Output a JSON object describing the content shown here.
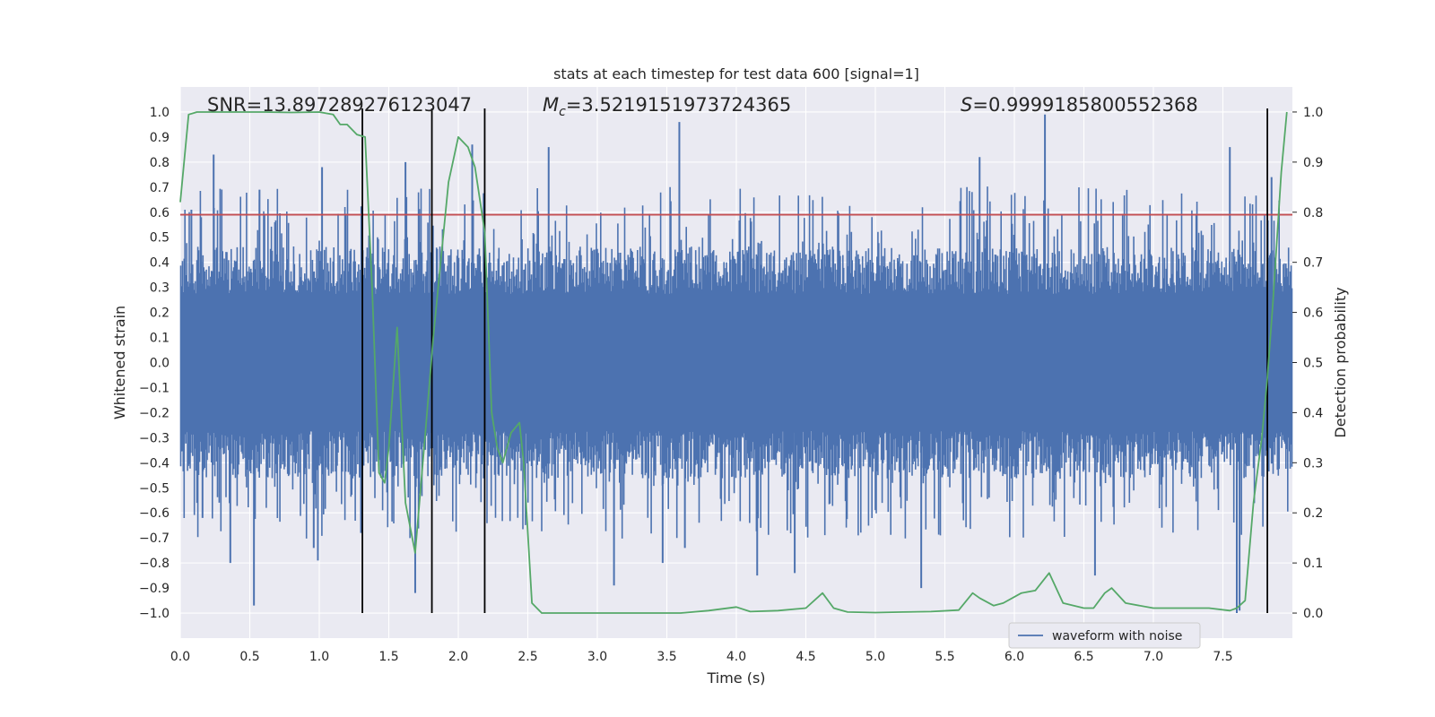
{
  "chart_data": {
    "type": "line",
    "title": "stats at each timestep for test data 600 [signal=1]",
    "xlabel": "Time (s)",
    "ylabel": "Whitened strain",
    "y2label": "Detection probability",
    "xlim": [
      0.0,
      8.0
    ],
    "ylim": [
      -1.1,
      1.1
    ],
    "y2lim": [
      -0.05,
      1.05
    ],
    "xticks": [
      0.0,
      0.5,
      1.0,
      1.5,
      2.0,
      2.5,
      3.0,
      3.5,
      4.0,
      4.5,
      5.0,
      5.5,
      6.0,
      6.5,
      7.0,
      7.5
    ],
    "xtick_labels": [
      "0.0",
      "0.5",
      "1.0",
      "1.5",
      "2.0",
      "2.5",
      "3.0",
      "3.5",
      "4.0",
      "4.5",
      "5.0",
      "5.5",
      "6.0",
      "6.5",
      "7.0",
      "7.5"
    ],
    "yticks": [
      -1.0,
      -0.9,
      -0.8,
      -0.7,
      -0.6,
      -0.5,
      -0.4,
      -0.3,
      -0.2,
      -0.1,
      0.0,
      0.1,
      0.2,
      0.3,
      0.4,
      0.5,
      0.6,
      0.7,
      0.8,
      0.9,
      1.0
    ],
    "ytick_labels": [
      "−1.0",
      "−0.9",
      "−0.8",
      "−0.7",
      "−0.6",
      "−0.5",
      "−0.4",
      "−0.3",
      "−0.2",
      "−0.1",
      "0.0",
      "0.1",
      "0.2",
      "0.3",
      "0.4",
      "0.5",
      "0.6",
      "0.7",
      "0.8",
      "0.9",
      "1.0"
    ],
    "y2ticks": [
      0.0,
      0.1,
      0.2,
      0.3,
      0.4,
      0.5,
      0.6,
      0.7,
      0.8,
      0.9,
      1.0
    ],
    "y2tick_labels": [
      "0.0",
      "0.1",
      "0.2",
      "0.3",
      "0.4",
      "0.5",
      "0.6",
      "0.7",
      "0.8",
      "0.9",
      "1.0"
    ],
    "grid": true,
    "legend": {
      "placement": "lower-right",
      "entries": [
        "waveform with noise"
      ]
    },
    "annotations": {
      "snr": "SNR=13.897289276123047",
      "mc_symbol": "M",
      "mc_sub": "c",
      "mc_value": "=3.5219151973724365",
      "s_symbol": "S",
      "s_value": "=0.9999185800552368"
    },
    "threshold": {
      "y": 0.59,
      "color": "#c44e52"
    },
    "vertical_lines": [
      1.31,
      1.81,
      2.19,
      7.82
    ],
    "series": [
      {
        "name": "waveform with noise",
        "color": "#4c72b0",
        "axis": "left",
        "envelope": true,
        "duration": 8.0,
        "typical_amplitude": 0.38,
        "peaks": [
          {
            "t": 0.08,
            "v": 0.61
          },
          {
            "t": 0.15,
            "v": 0.58
          },
          {
            "t": 0.16,
            "v": -0.62
          },
          {
            "t": 0.24,
            "v": 0.83
          },
          {
            "t": 0.36,
            "v": -0.8
          },
          {
            "t": 0.53,
            "v": -0.97
          },
          {
            "t": 0.57,
            "v": 0.69
          },
          {
            "t": 0.96,
            "v": -0.74
          },
          {
            "t": 0.99,
            "v": -0.79
          },
          {
            "t": 1.02,
            "v": 0.78
          },
          {
            "t": 1.3,
            "v": -0.68
          },
          {
            "t": 1.62,
            "v": 0.8
          },
          {
            "t": 1.69,
            "v": -0.92
          },
          {
            "t": 2.1,
            "v": 0.87
          },
          {
            "t": 2.65,
            "v": 0.86
          },
          {
            "t": 3.12,
            "v": -0.89
          },
          {
            "t": 3.47,
            "v": -0.8
          },
          {
            "t": 3.59,
            "v": 0.96
          },
          {
            "t": 3.63,
            "v": -0.74
          },
          {
            "t": 4.15,
            "v": -0.85
          },
          {
            "t": 4.42,
            "v": -0.84
          },
          {
            "t": 5.33,
            "v": -0.9
          },
          {
            "t": 5.75,
            "v": 0.82
          },
          {
            "t": 6.22,
            "v": 0.99
          },
          {
            "t": 6.58,
            "v": -0.85
          },
          {
            "t": 7.55,
            "v": 0.86
          },
          {
            "t": 7.6,
            "v": -1.0
          },
          {
            "t": 7.62,
            "v": -0.99
          },
          {
            "t": 7.85,
            "v": 0.74
          }
        ]
      },
      {
        "name": "detection probability",
        "color": "#55a868",
        "axis": "right",
        "x": [
          0.0,
          0.06,
          0.12,
          0.2,
          0.4,
          0.6,
          0.8,
          1.0,
          1.1,
          1.15,
          1.2,
          1.27,
          1.33,
          1.38,
          1.43,
          1.47,
          1.5,
          1.56,
          1.62,
          1.69,
          1.76,
          1.82,
          1.88,
          1.93,
          2.0,
          2.07,
          2.12,
          2.19,
          2.24,
          2.28,
          2.32,
          2.38,
          2.44,
          2.47,
          2.53,
          2.6,
          2.8,
          3.0,
          3.3,
          3.6,
          3.8,
          4.0,
          4.1,
          4.3,
          4.5,
          4.62,
          4.7,
          4.8,
          5.0,
          5.2,
          5.4,
          5.6,
          5.7,
          5.75,
          5.85,
          5.92,
          6.05,
          6.15,
          6.25,
          6.35,
          6.5,
          6.57,
          6.65,
          6.7,
          6.8,
          7.0,
          7.2,
          7.4,
          7.55,
          7.6,
          7.66,
          7.72,
          7.78,
          7.82,
          7.86,
          7.92,
          7.96
        ],
        "y": [
          0.82,
          0.995,
          1.0,
          1.0,
          1.0,
          1.0,
          0.999,
          1.0,
          0.995,
          0.975,
          0.975,
          0.955,
          0.95,
          0.65,
          0.28,
          0.26,
          0.33,
          0.57,
          0.22,
          0.12,
          0.35,
          0.55,
          0.72,
          0.86,
          0.95,
          0.93,
          0.89,
          0.76,
          0.4,
          0.33,
          0.3,
          0.36,
          0.38,
          0.3,
          0.02,
          0.0,
          0.0,
          0.0,
          0.0,
          0.0,
          0.005,
          0.012,
          0.003,
          0.005,
          0.01,
          0.04,
          0.01,
          0.002,
          0.001,
          0.002,
          0.003,
          0.006,
          0.04,
          0.03,
          0.015,
          0.02,
          0.04,
          0.045,
          0.08,
          0.02,
          0.01,
          0.01,
          0.04,
          0.05,
          0.02,
          0.01,
          0.01,
          0.01,
          0.005,
          0.01,
          0.025,
          0.22,
          0.35,
          0.47,
          0.62,
          0.88,
          1.0
        ]
      }
    ]
  }
}
